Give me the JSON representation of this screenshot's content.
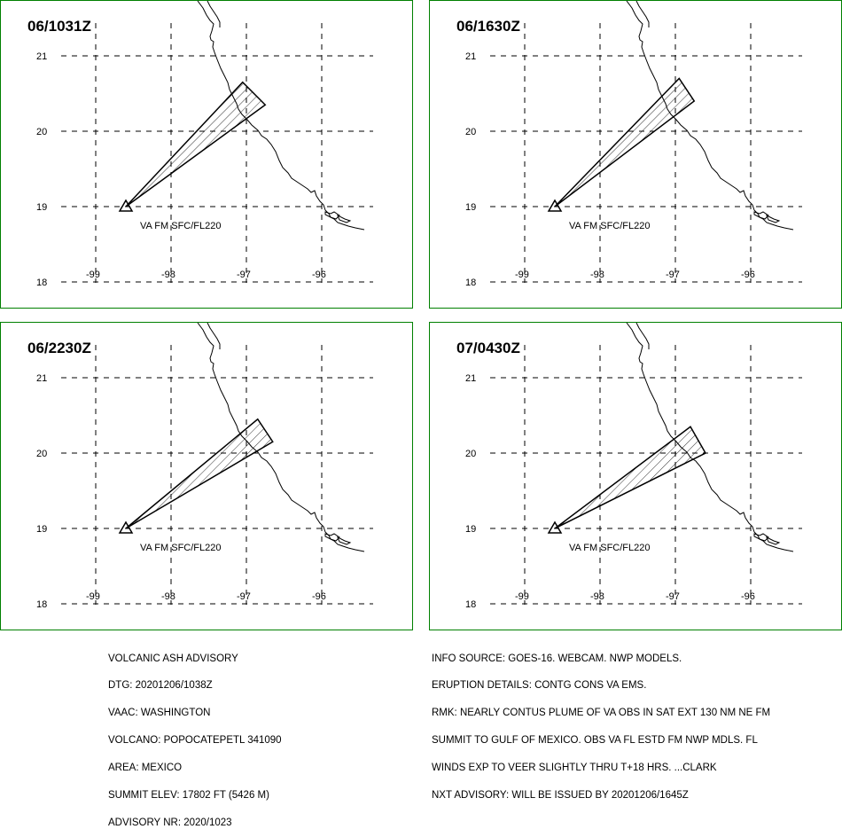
{
  "panels": [
    {
      "time": "06/1031Z",
      "plume_label": "VA FM SFC/FL220",
      "polygon": [
        [
          -98.6,
          19.0
        ],
        [
          -97.05,
          20.65
        ],
        [
          -96.75,
          20.35
        ],
        [
          -98.6,
          19.0
        ]
      ]
    },
    {
      "time": "06/1630Z",
      "plume_label": "VA FM SFC/FL220",
      "polygon": [
        [
          -98.6,
          19.0
        ],
        [
          -96.95,
          20.7
        ],
        [
          -96.75,
          20.4
        ],
        [
          -98.6,
          19.0
        ]
      ]
    },
    {
      "time": "06/2230Z",
      "plume_label": "VA FM SFC/FL220",
      "polygon": [
        [
          -98.6,
          19.0
        ],
        [
          -96.85,
          20.45
        ],
        [
          -96.65,
          20.15
        ],
        [
          -98.6,
          19.0
        ]
      ]
    },
    {
      "time": "07/0430Z",
      "plume_label": "VA FM SFC/FL220",
      "polygon": [
        [
          -98.6,
          19.0
        ],
        [
          -96.8,
          20.35
        ],
        [
          -96.6,
          20.0
        ],
        [
          -98.6,
          19.0
        ]
      ]
    }
  ],
  "axes": {
    "lat_ticks": [
      "21",
      "20",
      "19",
      "18"
    ],
    "lon_ticks": [
      "-99",
      "-98",
      "-97",
      "-96"
    ],
    "lat_values": [
      21,
      20,
      19,
      18
    ],
    "lon_values": [
      -99,
      -98,
      -97,
      -96
    ]
  },
  "volcano": {
    "lat": 19.0,
    "lon": -98.6,
    "symbol": "volcano-triangle-icon"
  },
  "info_left": [
    "VOLCANIC ASH ADVISORY",
    "DTG: 20201206/1038Z",
    "VAAC: WASHINGTON",
    "VOLCANO: POPOCATEPETL 341090",
    "AREA: MEXICO",
    "SUMMIT ELEV: 17802 FT (5426 M)",
    "ADVISORY NR: 2020/1023"
  ],
  "info_right": [
    "INFO SOURCE: GOES-16. WEBCAM. NWP MODELS.",
    "ERUPTION DETAILS: CONTG CONS VA EMS.",
    "RMK: NEARLY CONTUS PLUME OF VA OBS IN SAT EXT 130 NM NE FM",
    "SUMMIT TO GULF OF MEXICO. OBS VA FL ESTD FM NWP MDLS. FL",
    "WINDS EXP TO VEER SLIGHTLY THRU T+18 HRS. ...CLARK",
    "NXT ADVISORY: WILL BE ISSUED BY 20201206/1645Z"
  ],
  "colors": {
    "frame": "#008000",
    "lines": "#000000",
    "background": "#ffffff"
  }
}
